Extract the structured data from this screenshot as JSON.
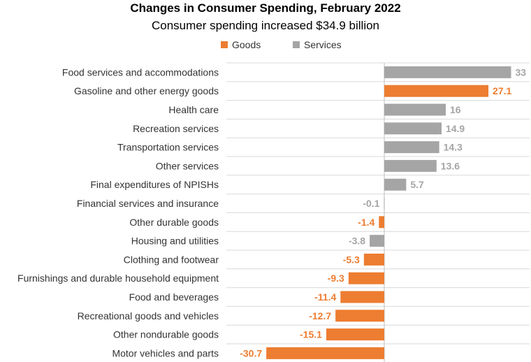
{
  "chart_data": {
    "type": "bar",
    "orientation": "horizontal",
    "title": "Changes in Consumer Spending, February 2022",
    "subtitle": "Consumer spending increased $34.9 billion",
    "legend": [
      {
        "name": "Goods",
        "color": "#ED7D31"
      },
      {
        "name": "Services",
        "color": "#A5A5A5"
      }
    ],
    "legend_position": "top",
    "grid": "horizontal row lines",
    "xlim": [
      -35,
      35
    ],
    "categories": [
      "Food services and accommodations",
      "Gasoline and other energy goods",
      "Health care",
      "Recreation services",
      "Transportation services",
      "Other services",
      "Final expenditures of NPISHs",
      "Financial services and insurance",
      "Other durable goods",
      "Housing and utilities",
      "Clothing and footwear",
      "Furnishings and durable household equipment",
      "Food and beverages",
      "Recreational goods and vehicles",
      "Other nondurable goods",
      "Motor vehicles and parts"
    ],
    "values": [
      33,
      27.1,
      16,
      14.9,
      14.3,
      13.6,
      5.7,
      -0.1,
      -1.4,
      -3.8,
      -5.3,
      -9.3,
      -11.4,
      -12.7,
      -15.1,
      -30.7
    ],
    "value_labels": [
      "33",
      "27.1",
      "16",
      "14.9",
      "14.3",
      "13.6",
      "5.7",
      "-0.1",
      "-1.4",
      "-3.8",
      "-5.3",
      "-9.3",
      "-11.4",
      "-12.7",
      "-15.1",
      "-30.7"
    ],
    "series_of_category": [
      "Services",
      "Goods",
      "Services",
      "Services",
      "Services",
      "Services",
      "Services",
      "Services",
      "Goods",
      "Services",
      "Goods",
      "Goods",
      "Goods",
      "Goods",
      "Goods",
      "Goods"
    ]
  }
}
